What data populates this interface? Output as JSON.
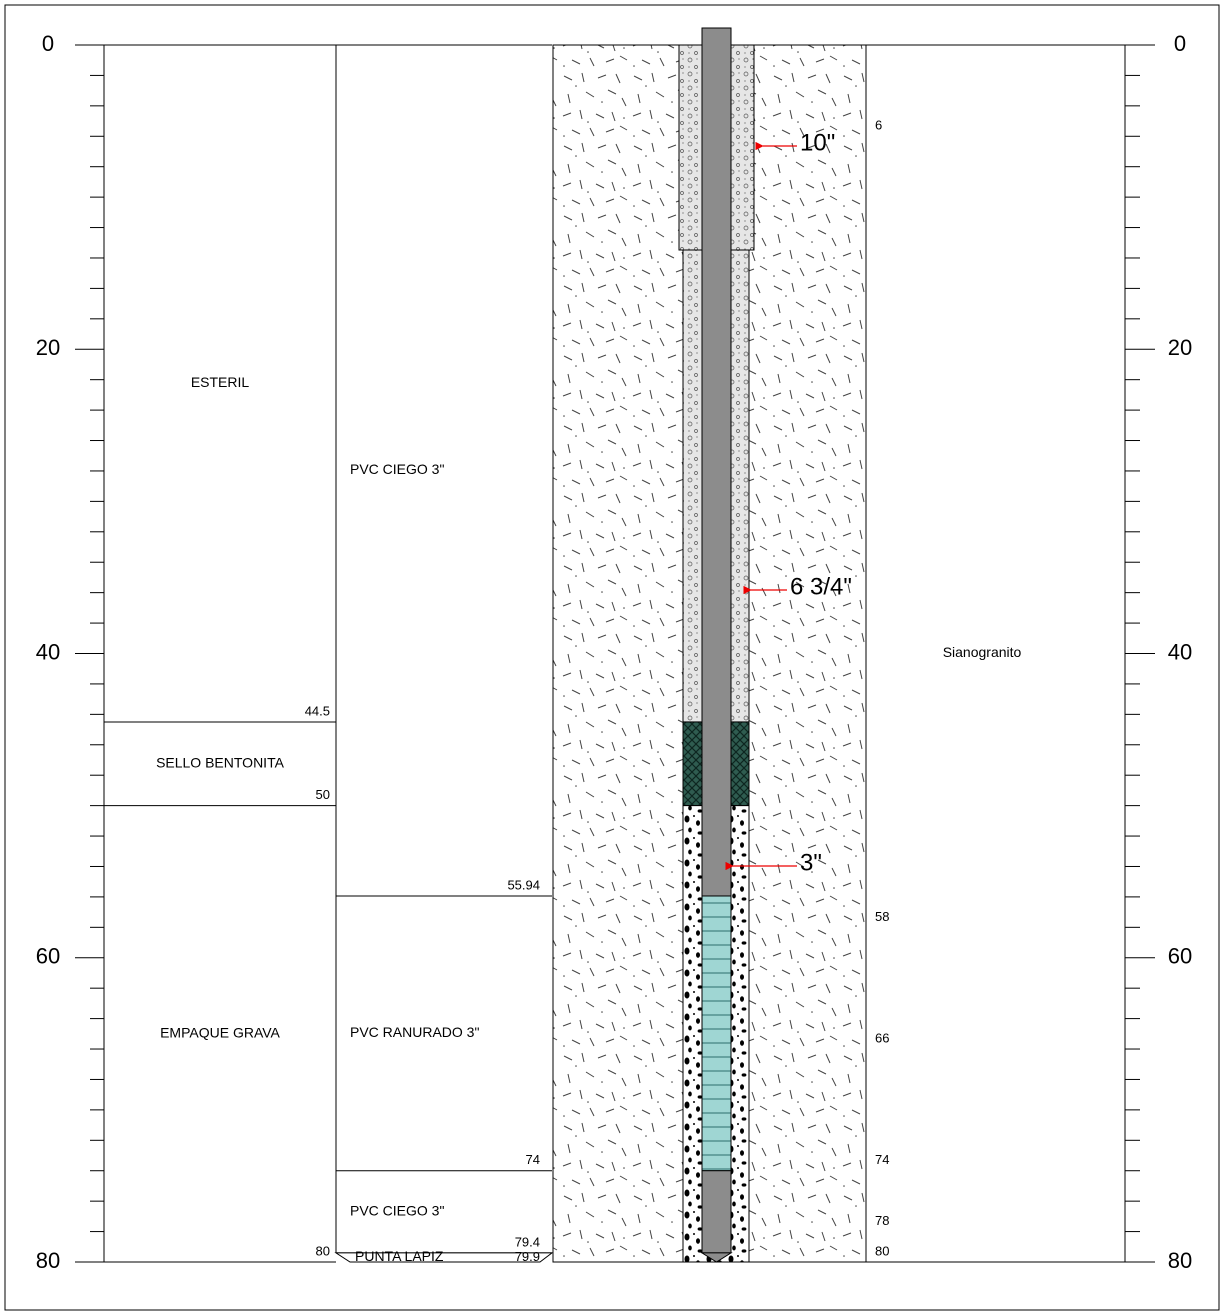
{
  "depth_axis": {
    "ticks": [
      0,
      20,
      40,
      60,
      80
    ]
  },
  "lithology": [
    {
      "label": "ESTERIL",
      "bottom": 44.5
    },
    {
      "label": "SELLO BENTONITA",
      "bottom": 50
    },
    {
      "label": "EMPAQUE GRAVA",
      "bottom": 80
    }
  ],
  "completion": [
    {
      "label": "PVC CIEGO 3\"",
      "bottom": 55.94
    },
    {
      "label": "PVC RANURADO 3\"",
      "bottom": 74
    },
    {
      "label": "PVC CIEGO 3\"",
      "bottom": 79.4
    },
    {
      "label": "PUNTA LAPIZ",
      "bottom": 79.9
    }
  ],
  "depth_marks": [
    6,
    58,
    66,
    74,
    78,
    80
  ],
  "diameters": [
    "10\"",
    "6 3/4\"",
    "3\""
  ],
  "formation": "Sianogranito"
}
